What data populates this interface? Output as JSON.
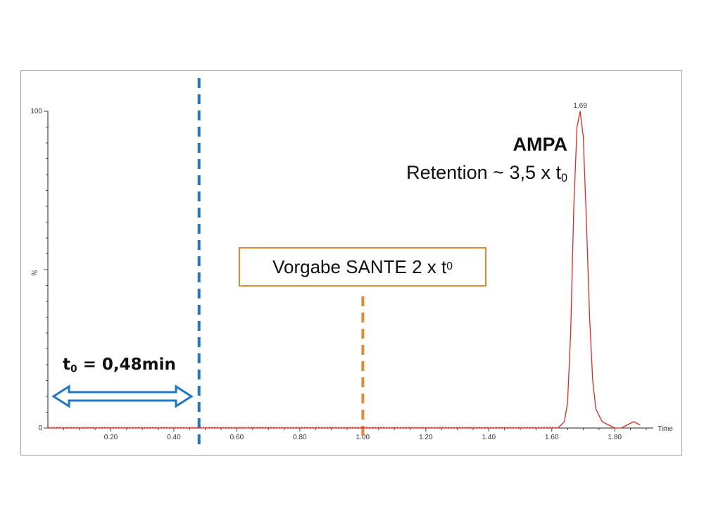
{
  "chart_data": {
    "type": "line",
    "title": "",
    "xlabel": "Time",
    "ylabel": "%",
    "xlim": [
      0.0,
      1.9
    ],
    "ylim": [
      0,
      100
    ],
    "x_ticks": [
      "0.20",
      "0.40",
      "0.60",
      "0.80",
      "1.00",
      "1.20",
      "1.40",
      "1.60",
      "1.80"
    ],
    "y_ticks": [
      "0",
      "100"
    ],
    "series": [
      {
        "color": "#e8281e",
        "x": [
          0.0,
          1.6,
          1.62,
          1.64,
          1.65,
          1.66,
          1.67,
          1.68,
          1.69,
          1.7,
          1.71,
          1.72,
          1.73,
          1.74,
          1.76,
          1.78,
          1.8,
          1.82,
          1.84,
          1.86,
          1.88
        ],
        "y": [
          0,
          0,
          0,
          2,
          8,
          30,
          70,
          95,
          100,
          92,
          65,
          35,
          15,
          6,
          2,
          1,
          0,
          0,
          1,
          2,
          1
        ]
      }
    ],
    "peak": {
      "x": 1.69,
      "label": "1.69"
    },
    "markers": [
      {
        "x": 0.48,
        "color": "#1f78c1"
      },
      {
        "x": 1.0,
        "color": "#e58a33"
      }
    ]
  },
  "annotations": {
    "t0_base": "t",
    "t0_sub": "0",
    "t0_rest": " = 0,48min",
    "box_text": "Vorgabe SANTE 2 x t",
    "box_sub": "0",
    "ampa_title": "AMPA",
    "ampa_retention": "Retention ~ 3,5 x t",
    "ampa_sub": "0"
  },
  "colors": {
    "trace": "#e8281e",
    "t0_line": "#1f78c1",
    "sante_line": "#e58a33",
    "arrow": "#1f78c1"
  }
}
